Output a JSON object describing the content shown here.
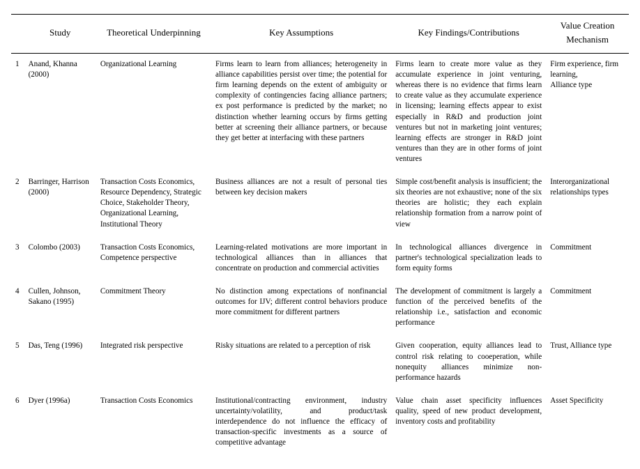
{
  "table": {
    "columns": [
      "",
      "Study",
      "Theoretical Underpinning",
      "Key Assumptions",
      "Key Findings/Contributions",
      "Value Creation Mechanism"
    ],
    "rows": [
      {
        "n": "1",
        "study": "Anand, Khanna (2000)",
        "theory": "Organizational Learning",
        "assumptions": "Firms learn to learn from alliances; heterogeneity in alliance capabilities persist over time; the potential for firm learning depends on the extent of ambiguity or complexity of contingencies facing alliance partners; ex post performance is predicted by the market; no distinction whether learning occurs by firms getting better at screening their alliance partners, or because they get better at interfacing with these partners",
        "findings": "Firms learn to create more value as they accumulate experience in joint venturing, whereas there is no evidence that firms learn to create value as they accumulate experience in licensing; learning effects appear to exist especially in R&D and production joint ventures but not in marketing joint ventures; learning effects are stronger in R&D joint ventures than they are in other forms of joint ventures",
        "mechanism": "Firm experience, firm learning,\nAlliance type"
      },
      {
        "n": "2",
        "study": "Barringer, Harrison (2000)",
        "theory": "Transaction Costs Economics, Resource Dependency, Strategic Choice, Stakeholder Theory, Organizational Learning, Institutional Theory",
        "assumptions": "Business alliances are not a result of personal ties between key decision makers",
        "findings": "Simple cost/benefit analysis is insufficient; the six theories are not exhaustive; none of the six theories are holistic; they each explain relationship formation from a narrow point of view",
        "mechanism": "Interorganizational relationships types"
      },
      {
        "n": "3",
        "study": "Colombo (2003)",
        "theory": "Transaction Costs Economics, Competence perspective",
        "assumptions": "Learning-related motivations are more important in technological alliances than in alliances that concentrate on production and commercial activities",
        "findings": "In technological alliances divergence in partner's technological specialization leads to form equity forms",
        "mechanism": "Commitment"
      },
      {
        "n": "4",
        "study": "Cullen, Johnson, Sakano (1995)",
        "theory": "Commitment Theory",
        "assumptions": "No distinction among expectations of nonfinancial outcomes for IJV; different control behaviors produce more commitment for different partners",
        "findings": "The development of commitment is largely a function of the perceived benefits of the relationship i.e., satisfaction and economic performance",
        "mechanism": "Commitment"
      },
      {
        "n": "5",
        "study": "Das, Teng (1996)",
        "theory": "Integrated risk perspective",
        "assumptions": "Risky situations are related to a perception of risk",
        "findings": "Given cooperation, equity alliances lead to control risk relating to cooeperation, while nonequity alliances minimize non-performance hazards",
        "mechanism": "Trust, Alliance type"
      },
      {
        "n": "6",
        "study": "Dyer (1996a)",
        "theory": "Transaction Costs Economics",
        "assumptions": "Institutional/contracting environment, industry uncertainty/volatility, and product/task interdependence do not influence the efficacy of transaction-specific investments as a source of competitive advantage",
        "findings": "Value chain asset specificity influences quality, speed of new product development, inventory costs and profitability",
        "mechanism": "Asset Specificity"
      }
    ]
  }
}
